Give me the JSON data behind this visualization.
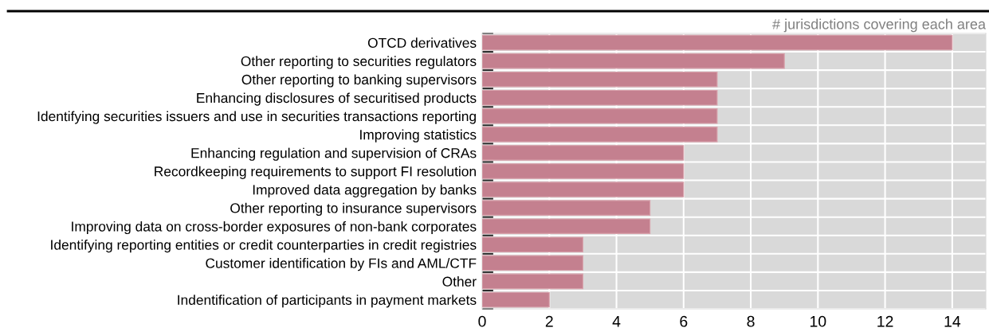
{
  "chart_data": {
    "type": "bar",
    "orientation": "horizontal",
    "xlabel": "# jurisdictions covering each area",
    "categories": [
      "OTCD derivatives",
      "Other reporting to securities regulators",
      "Other reporting to banking supervisors",
      "Enhancing disclosures of securitised products",
      "Identifying securities issuers and use in securities transactions reporting",
      "Improving statistics",
      "Enhancing regulation and supervision of CRAs",
      "Recordkeeping requirements to support FI resolution",
      "Improved data aggregation by banks",
      "Other reporting to insurance supervisors",
      "Improving data on cross-border exposures of non-bank corporates",
      "Identifying reporting entities or credit counterparties in credit registries",
      "Customer identification by FIs and AML/CTF",
      "Other",
      "Indentification of participants in payment markets"
    ],
    "values": [
      14,
      9,
      7,
      7,
      7,
      7,
      6,
      6,
      6,
      5,
      5,
      3,
      3,
      3,
      2
    ],
    "color": "#c4808f",
    "xlim": [
      0,
      15
    ],
    "xticks": [
      0,
      2,
      4,
      6,
      8,
      10,
      12,
      14
    ],
    "grid": true
  }
}
